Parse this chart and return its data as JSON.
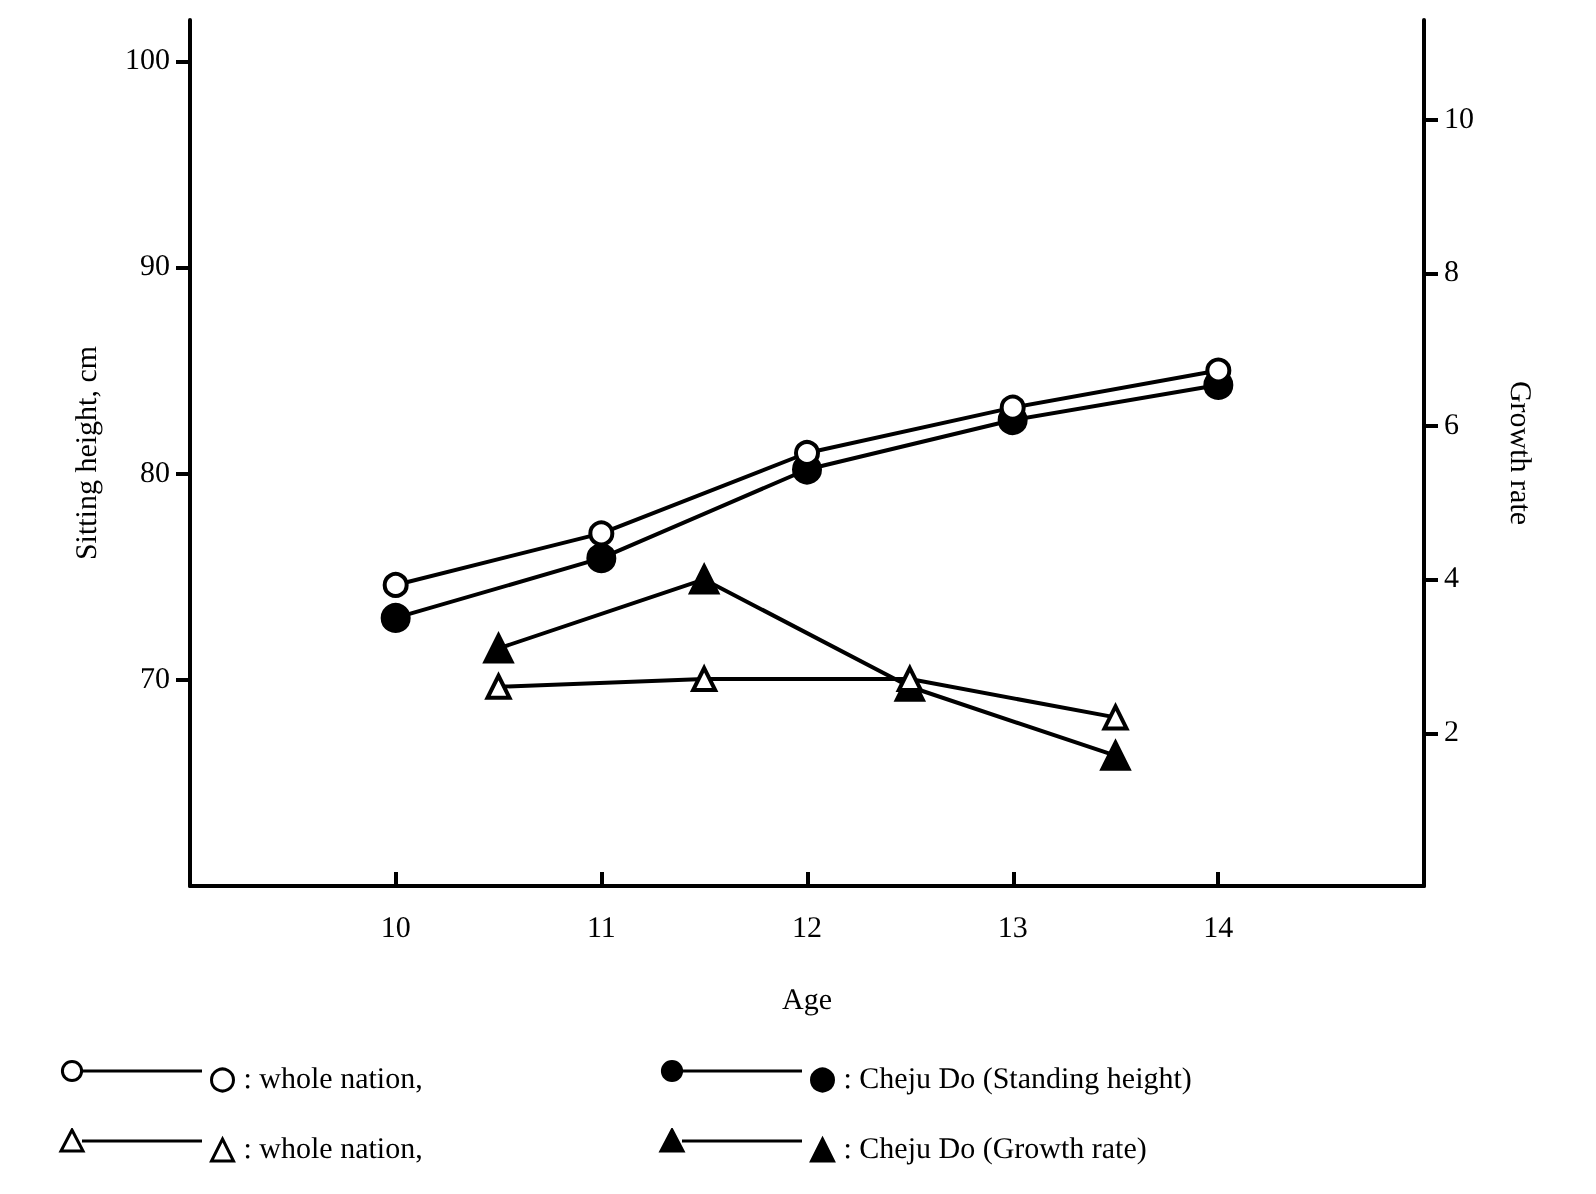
{
  "chart_data": {
    "type": "line",
    "xlabel": "Age",
    "ylabel": "Sitting height, cm",
    "y2label": "Growth rate",
    "xlim": [
      9,
      15
    ],
    "xticks": [
      {
        "value": 10,
        "label": "10"
      },
      {
        "value": 11,
        "label": "11"
      },
      {
        "value": 12,
        "label": "12"
      },
      {
        "value": 13,
        "label": "13"
      },
      {
        "value": 14,
        "label": "14"
      }
    ],
    "ylim": [
      60,
      102
    ],
    "yticks": [
      70,
      80,
      90,
      100
    ],
    "y2lim": [
      0,
      11.3
    ],
    "y2ticks": [
      2,
      4,
      6,
      8,
      10
    ],
    "grid": false,
    "legend": "bottom",
    "line_style": "solid",
    "series": [
      {
        "name": ": whole nation,",
        "color": "#000000",
        "colors": [
          "#ffffff",
          "#ffffff",
          "#ffffff",
          "#ffffff",
          "#ffffff"
        ],
        "marker": "circle",
        "x": [
          10,
          11,
          12,
          13,
          14
        ],
        "values": [
          74.6,
          77.1,
          81.0,
          83.2,
          85.0
        ]
      },
      {
        "name": ": Cheju Do (Standing height)",
        "color": "#000000",
        "marker": "circle",
        "x": [
          10,
          11,
          12,
          13,
          14
        ],
        "values": [
          73.0,
          75.9,
          80.2,
          82.6,
          84.3
        ]
      },
      {
        "name": ": whole nation,",
        "color": "#000000",
        "colors": [
          "#ffffff",
          "#ffffff",
          "#ffffff",
          "#ffffff"
        ],
        "marker": "triangle",
        "axis": "y2",
        "x": [
          10.5,
          11.5,
          12.5,
          13.5
        ],
        "values": [
          2.6,
          2.7,
          2.7,
          2.2
        ]
      },
      {
        "name": ": Cheju Do (Growth rate)",
        "color": "#000000",
        "marker": "triangle",
        "axis": "y2",
        "x": [
          10.5,
          11.5,
          12.5,
          13.5
        ],
        "values": [
          3.1,
          4.0,
          2.6,
          1.7
        ]
      }
    ]
  }
}
